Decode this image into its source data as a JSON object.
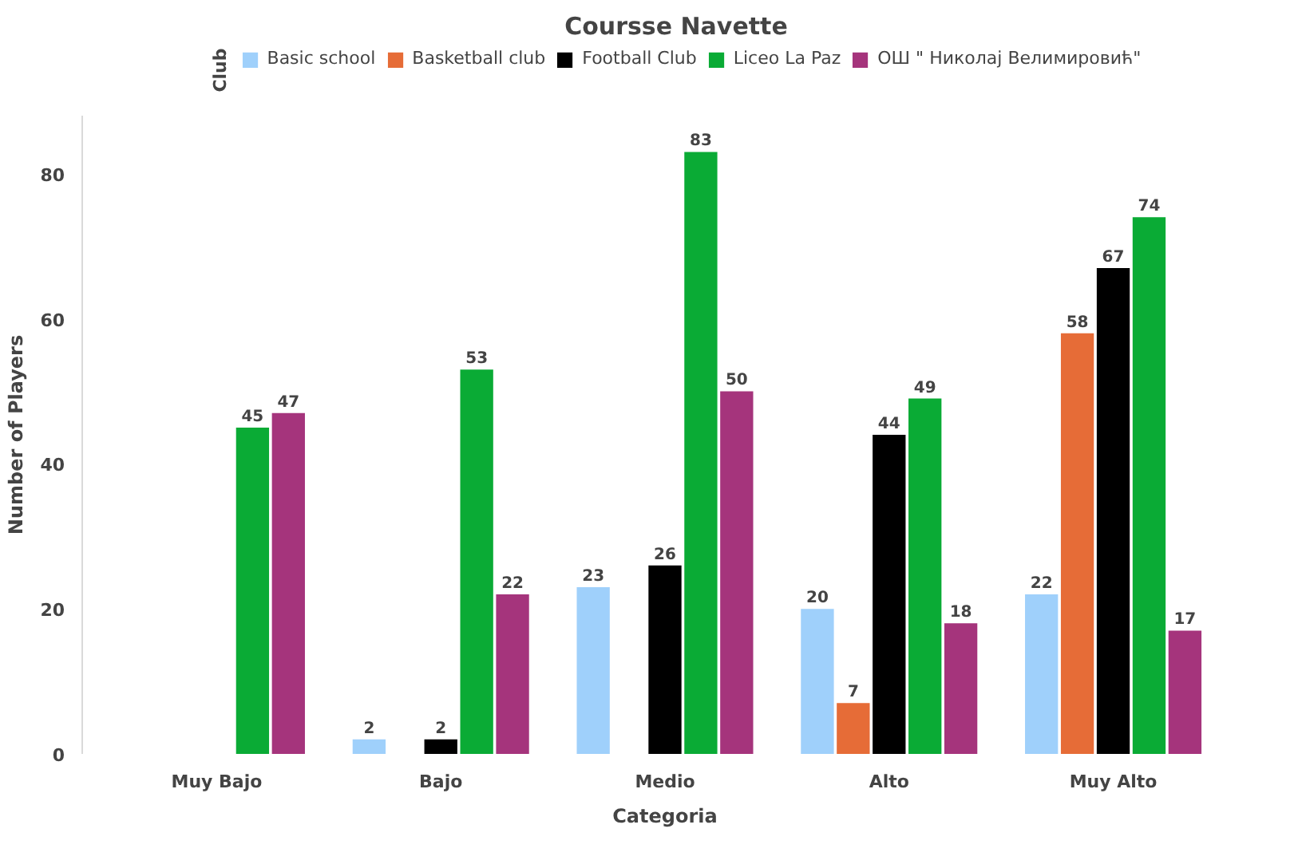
{
  "chart_data": {
    "type": "bar",
    "title": "Coursse Navette",
    "xlabel": "Categoria",
    "ylabel": "Number of Players",
    "legend_title": "Club",
    "legend": "top",
    "categories": [
      "Muy Bajo",
      "Bajo",
      "Medio",
      "Alto",
      "Muy Alto"
    ],
    "series": [
      {
        "name": "Basic school",
        "color": "#9fd0fb",
        "values": [
          null,
          2,
          23,
          20,
          22
        ]
      },
      {
        "name": "Basketball club",
        "color": "#e66c37",
        "values": [
          null,
          null,
          null,
          7,
          58
        ]
      },
      {
        "name": "Football Club",
        "color": "#000000",
        "values": [
          null,
          2,
          26,
          44,
          67
        ]
      },
      {
        "name": "Liceo La Paz",
        "color": "#0aab35",
        "values": [
          45,
          53,
          83,
          49,
          74
        ]
      },
      {
        "name": "ОШ \" Николај Велимировић\"",
        "color": "#a5347c",
        "values": [
          47,
          22,
          50,
          18,
          17
        ]
      }
    ],
    "ylim": [
      0,
      88
    ],
    "yticks": [
      0,
      20,
      40,
      60,
      80
    ],
    "grid": false,
    "data_labels": true
  }
}
